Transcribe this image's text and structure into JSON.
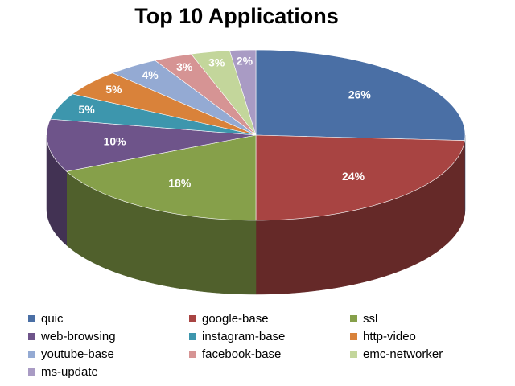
{
  "chart_data": {
    "type": "pie3d",
    "title": "Top 10 Applications",
    "categories": [
      "quic",
      "google-base",
      "ssl",
      "web-browsing",
      "instagram-base",
      "http-video",
      "youtube-base",
      "facebook-base",
      "emc-networker",
      "ms-update"
    ],
    "values": [
      26,
      24,
      18,
      10,
      5,
      5,
      4,
      3,
      3,
      2
    ],
    "value_labels": [
      "26%",
      "24%",
      "18%",
      "10%",
      "5%",
      "5%",
      "4%",
      "3%",
      "3%",
      "2%"
    ],
    "colors": [
      "#4a6fa5",
      "#a84442",
      "#86a04a",
      "#6e548a",
      "#3d96ad",
      "#d9823a",
      "#94aad3",
      "#d69494",
      "#c3d69b",
      "#a99bc4"
    ],
    "legend": "bottom"
  }
}
